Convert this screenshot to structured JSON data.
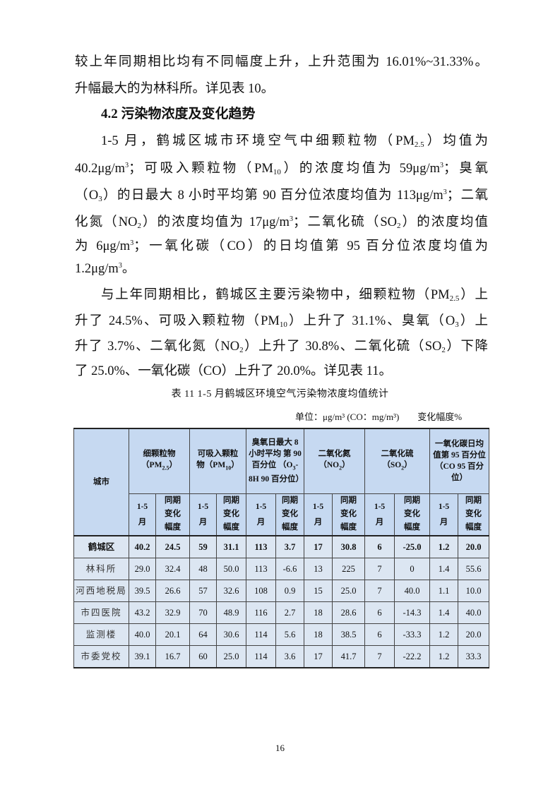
{
  "para_top_lines": [
    [
      "较上年同期相比均有不同幅度上升，上升范围为 16.01%~31.33%。"
    ],
    [
      "升幅最大的为林科所。详见表 10。"
    ]
  ],
  "section_heading": "4.2 污染物浓度及变化趋势",
  "para1_lines": [
    [
      "1-5 月，鹤城区城市环境空气中细颗粒物（PM",
      {
        "sub": "2.5"
      },
      "）均值为"
    ],
    [
      "40.2μg/m",
      {
        "sup": "3"
      },
      "；可吸入颗粒物（PM",
      {
        "sub": "10"
      },
      "）的浓度均值为 59μg/m",
      {
        "sup": "3"
      },
      "；臭氧"
    ],
    [
      "（O",
      {
        "sub": "3"
      },
      "）的日最大 8 小时平均第 90 百分位浓度均值为 113μg/m",
      {
        "sup": "3"
      },
      "；二氧"
    ],
    [
      "化氮（NO",
      {
        "sub": "2"
      },
      "）的浓度均值为 17μg/m",
      {
        "sup": "3"
      },
      "；二氧化硫（SO",
      {
        "sub": "2"
      },
      "）的浓度均值"
    ],
    [
      "为 6μg/m",
      {
        "sup": "3"
      },
      "；一氧化碳（CO）的日均值第 95 百分位浓度均值为"
    ],
    [
      "1.2μg/m",
      {
        "sup": "3"
      },
      "。"
    ]
  ],
  "para2_lines": [
    [
      "与上年同期相比，鹤城区主要污染物中，细颗粒物（PM",
      {
        "sub": "2.5"
      },
      "）上"
    ],
    [
      "升了 24.5%、可吸入颗粒物（PM",
      {
        "sub": "10"
      },
      "）上升了 31.1%、臭氧（O",
      {
        "sub": "3"
      },
      "）上"
    ],
    [
      "升了 3.7%、二氧化氮（NO",
      {
        "sub": "2"
      },
      "）上升了 30.8%、二氧化硫（SO",
      {
        "sub": "2"
      },
      "）下降"
    ],
    [
      "了 25.0%、一氧化碳（CO）上升了 20.0%。详见表 11。"
    ]
  ],
  "table": {
    "caption": "表 11  1-5 月鹤城区环境空气污染物浓度均值统计",
    "unit": "单位：μg/m³ (CO：mg/m³)",
    "unit2": "变化幅度%",
    "city_header": "城市",
    "groups": [
      {
        "label": "细颗粒物",
        "label2": "（PM",
        "sub": "2.5",
        "label3": "）"
      },
      {
        "label": "可吸入颗粒",
        "label2": "物（PM",
        "sub": "10",
        "label3": "）"
      },
      {
        "label": "臭氧日最大 8 小时平均 第 90 百分位 （O",
        "label2": "",
        "sub": "3",
        "label3": "-8H 90 百分位）"
      },
      {
        "label": "二氧化氮",
        "label2": "（NO",
        "sub": "2",
        "label3": "）"
      },
      {
        "label": "二氧化硫",
        "label2": "（SO",
        "sub": "2",
        "label3": "）"
      },
      {
        "label": "一氧化碳日均值第 95 百分位（CO 95 百分位）",
        "label2": "",
        "sub": "",
        "label3": ""
      }
    ],
    "sub_headers": [
      "1-5 月",
      "同期 变化 幅度"
    ],
    "rows": [
      {
        "city": "鹤城区",
        "values": [
          "40.2",
          "24.5",
          "59",
          "31.1",
          "113",
          "3.7",
          "17",
          "30.8",
          "6",
          "-25.0",
          "1.2",
          "20.0"
        ]
      },
      {
        "city": "林科所",
        "values": [
          "29.0",
          "32.4",
          "48",
          "50.0",
          "113",
          "-6.6",
          "13",
          "225",
          "7",
          "0",
          "1.4",
          "55.6"
        ]
      },
      {
        "city": "河西地税局",
        "values": [
          "39.5",
          "26.6",
          "57",
          "32.6",
          "108",
          "0.9",
          "15",
          "25.0",
          "7",
          "40.0",
          "1.1",
          "10.0"
        ]
      },
      {
        "city": "市四医院",
        "values": [
          "43.2",
          "32.9",
          "70",
          "48.9",
          "116",
          "2.7",
          "18",
          "28.6",
          "6",
          "-14.3",
          "1.4",
          "40.0"
        ]
      },
      {
        "city": "监测楼",
        "values": [
          "40.0",
          "20.1",
          "64",
          "30.6",
          "114",
          "5.6",
          "18",
          "38.5",
          "6",
          "-33.3",
          "1.2",
          "20.0"
        ]
      },
      {
        "city": "市委党校",
        "values": [
          "39.1",
          "16.7",
          "60",
          "25.0",
          "114",
          "3.6",
          "17",
          "41.7",
          "7",
          "-22.2",
          "1.2",
          "33.3"
        ]
      }
    ],
    "colors": {
      "header_bg": "#c6d9f1",
      "body_bg": "#dce6f2"
    }
  },
  "page_number": "16"
}
